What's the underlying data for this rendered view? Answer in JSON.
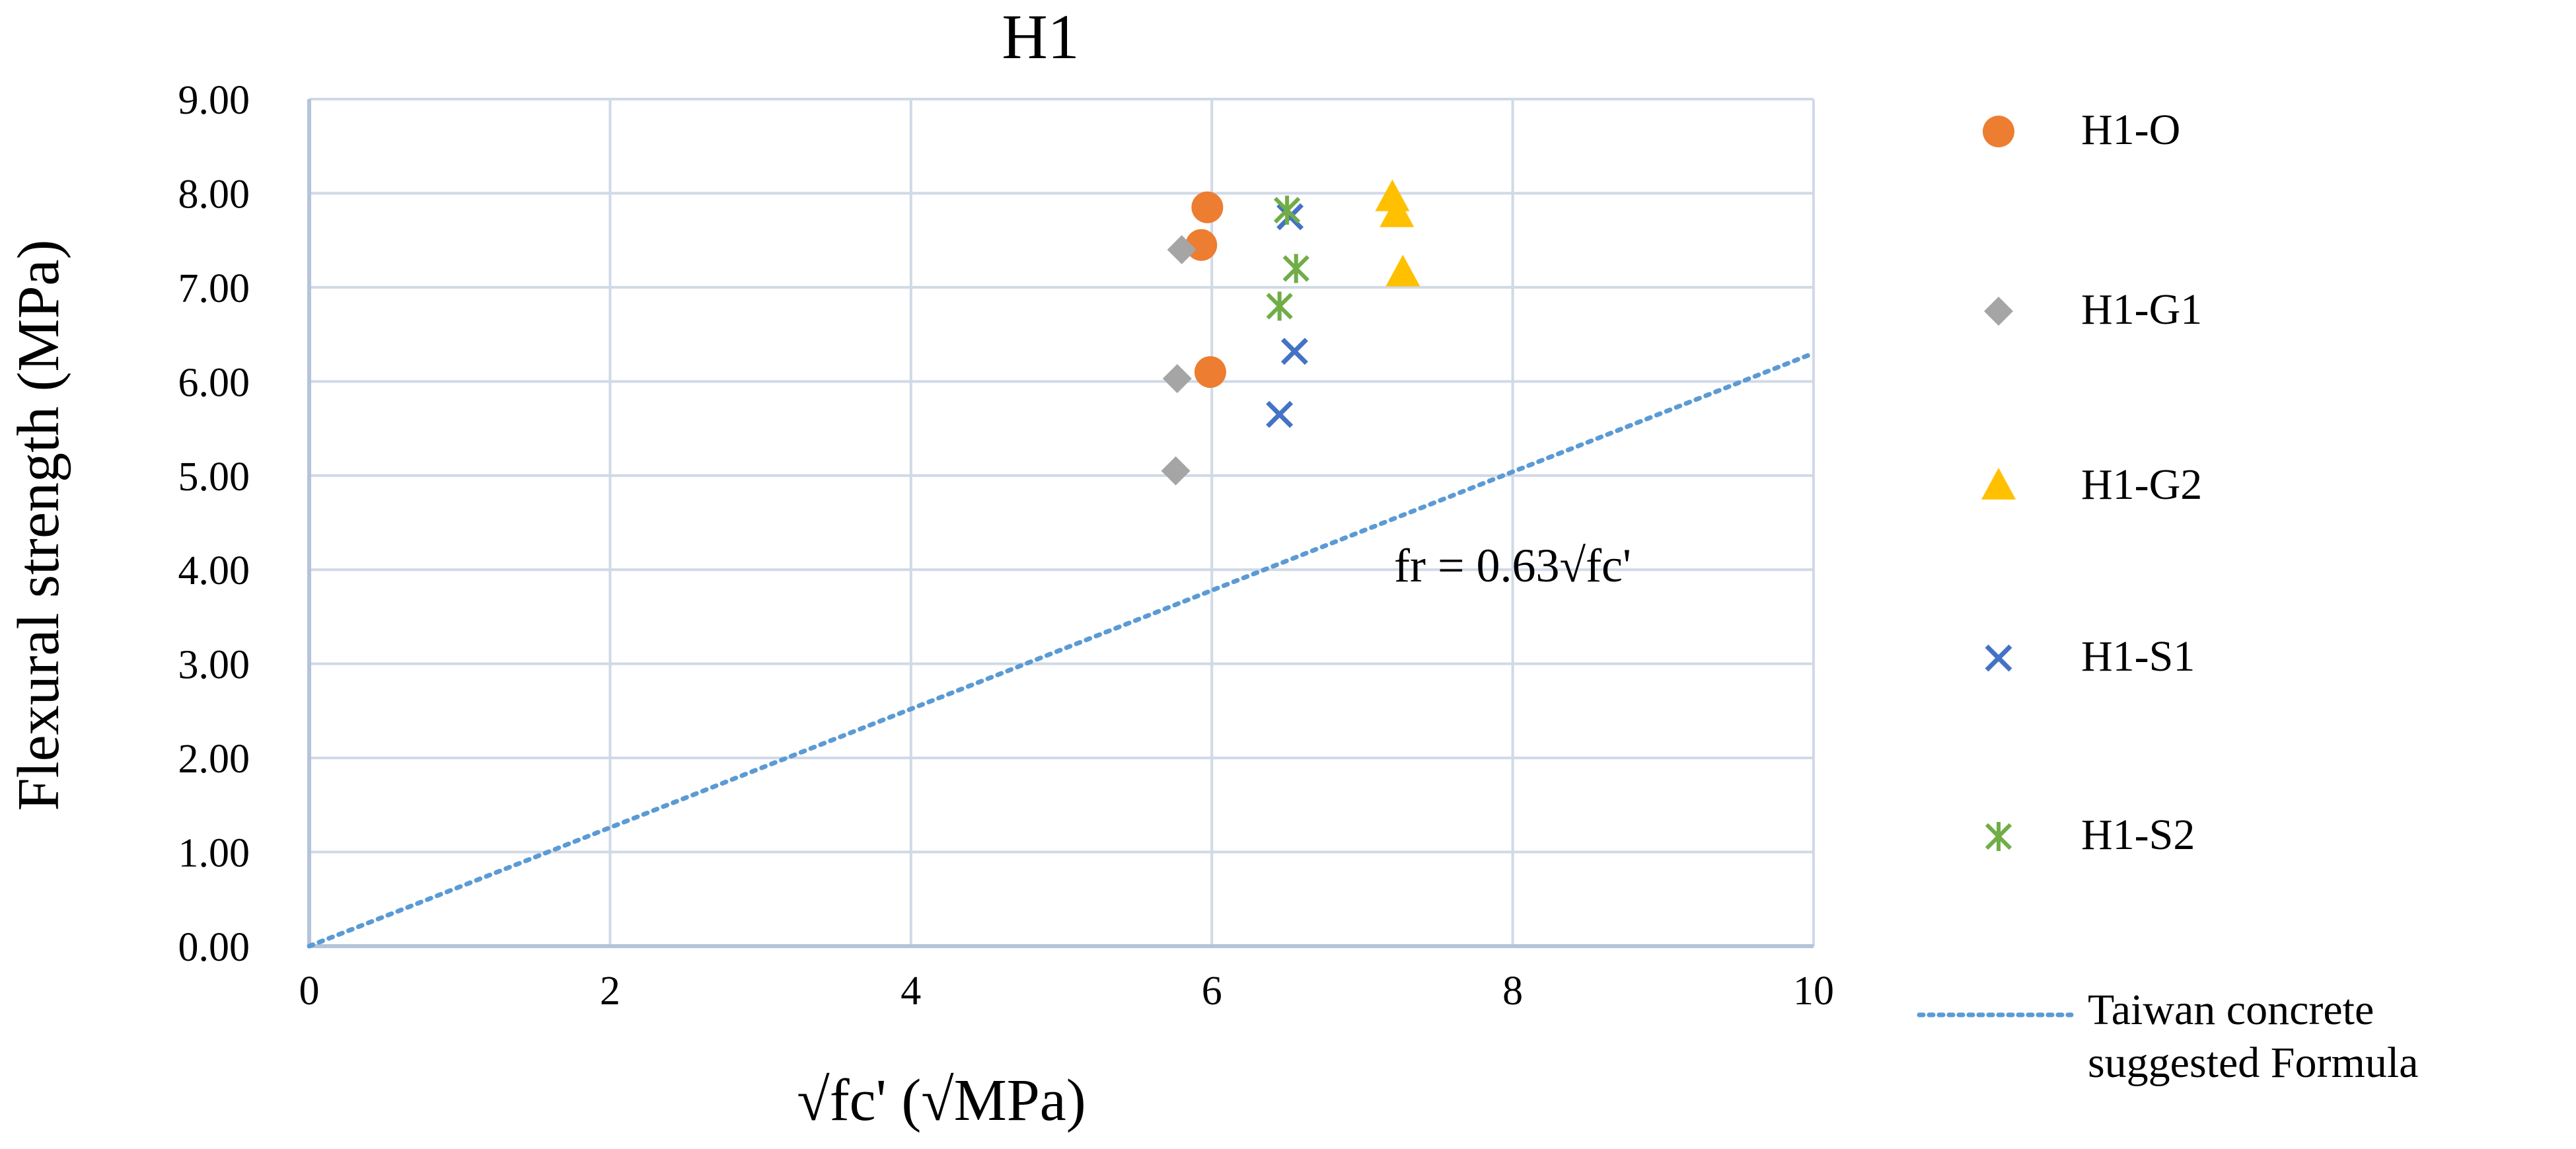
{
  "chart_data": {
    "type": "scatter",
    "title": "H1",
    "xlabel": "√fc' (√MPa)",
    "ylabel": "Flexural strength (MPa)",
    "xlim": [
      0,
      10
    ],
    "ylim": [
      0,
      9
    ],
    "x_ticks": [
      "0",
      "2",
      "4",
      "6",
      "8",
      "10"
    ],
    "y_ticks": [
      "0.00",
      "1.00",
      "2.00",
      "3.00",
      "4.00",
      "5.00",
      "6.00",
      "7.00",
      "8.00",
      "9.00"
    ],
    "grid": true,
    "legend_position": "right",
    "series": [
      {
        "name": "H1-O",
        "marker": "circle",
        "color": "#ED7D31",
        "points": [
          [
            5.97,
            7.85
          ],
          [
            5.93,
            7.45
          ],
          [
            5.99,
            6.1
          ]
        ]
      },
      {
        "name": "H1-G1",
        "marker": "diamond",
        "color": "#A5A5A5",
        "points": [
          [
            5.8,
            7.4
          ],
          [
            5.77,
            6.03
          ],
          [
            5.76,
            5.05
          ]
        ]
      },
      {
        "name": "H1-G2",
        "marker": "triangle",
        "color": "#FFC000",
        "points": [
          [
            7.2,
            7.95
          ],
          [
            7.23,
            7.78
          ],
          [
            7.27,
            7.15
          ]
        ]
      },
      {
        "name": "H1-S1",
        "marker": "x",
        "color": "#4472C4",
        "points": [
          [
            6.52,
            7.75
          ],
          [
            6.55,
            6.32
          ],
          [
            6.45,
            5.65
          ]
        ]
      },
      {
        "name": "H1-S2",
        "marker": "asterisk",
        "color": "#70AD47",
        "points": [
          [
            6.5,
            7.82
          ],
          [
            6.56,
            7.2
          ],
          [
            6.45,
            6.8
          ]
        ]
      }
    ],
    "reference_line": {
      "name": "Taiwan concrete suggested Formula",
      "legend_lines": [
        "Taiwan concrete",
        "suggested Formula"
      ],
      "style": "dotted",
      "color": "#5B9BD5",
      "slope": 0.63,
      "x_range": [
        0,
        10
      ],
      "annotation": "fr = 0.63√fc'"
    }
  }
}
